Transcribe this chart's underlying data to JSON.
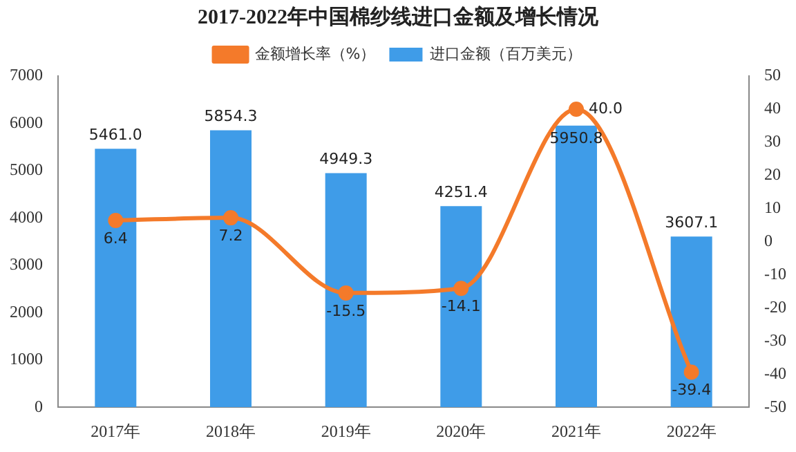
{
  "chart_data": {
    "type": "bar",
    "title": "2017-2022年中国棉纱线进口金额及增长情况",
    "categories": [
      "2017年",
      "2018年",
      "2019年",
      "2020年",
      "2021年",
      "2022年"
    ],
    "series": [
      {
        "name": "进口金额（百万美元）",
        "color": "#3f9ce8",
        "values": [
          5461.0,
          5854.3,
          4949.3,
          4251.4,
          5950.8,
          3607.1
        ],
        "value_labels": [
          "5461.0",
          "5854.3",
          "4949.3",
          "4251.4",
          "5950.8",
          "3607.1"
        ]
      },
      {
        "name": "金额增长率（%）",
        "type": "line",
        "axis": "y2",
        "color": "#f47a2a",
        "values": [
          6.4,
          7.2,
          -15.5,
          -14.1,
          40.0,
          -39.4
        ],
        "value_labels": [
          "6.4",
          "7.2",
          "-15.5",
          "-14.1",
          "40.0",
          "-39.4"
        ]
      }
    ],
    "ylim": [
      0,
      7000
    ],
    "yticks": [
      0,
      1000,
      2000,
      3000,
      4000,
      5000,
      6000,
      7000
    ],
    "y2lim": [
      -50,
      50
    ],
    "y2ticks": [
      -50,
      -40,
      -30,
      -20,
      -10,
      0,
      10,
      20,
      30,
      40,
      50
    ],
    "legend": "top",
    "grid": false,
    "marker": "circle",
    "line_style": "solid"
  }
}
